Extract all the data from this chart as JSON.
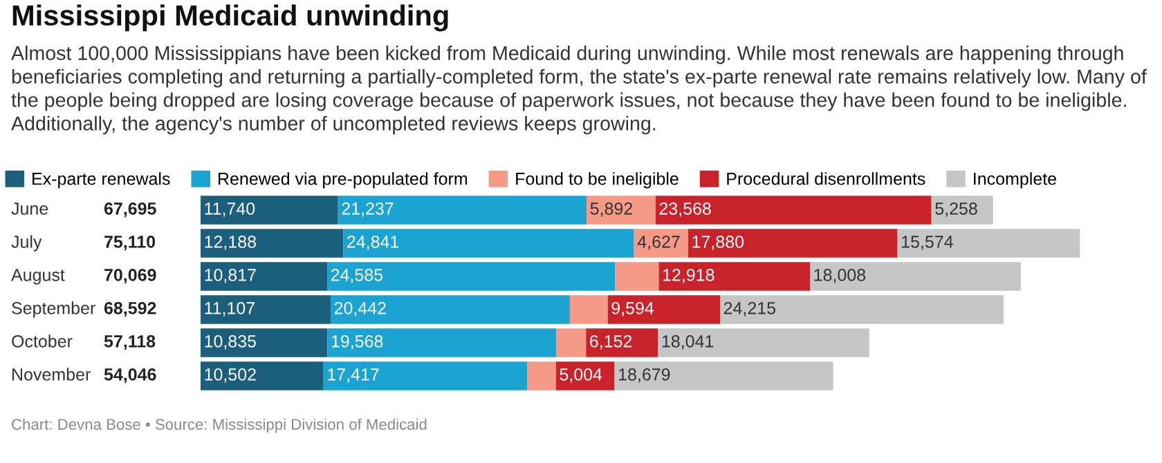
{
  "chart_data": {
    "type": "bar",
    "orientation": "horizontal",
    "stacked": true,
    "title": "Mississippi Medicaid unwinding",
    "subtitle": "Almost 100,000 Mississippians have been kicked from Medicaid during unwinding. While most renewals are happening through beneficiaries completing and returning a partially-completed form, the state's ex-parte renewal rate remains relatively low. Many of the people being dropped are losing coverage because of paperwork issues, not because they have been found to be ineligible. Additionally, the agency's number of uncompleted reviews keeps growing.",
    "categories": [
      "June",
      "July",
      "August",
      "September",
      "October",
      "November"
    ],
    "series": [
      {
        "name": "Ex-parte renewals",
        "color": "#1b5f7c",
        "values": [
          11740,
          12188,
          10817,
          11107,
          10835,
          10502
        ],
        "value_labels": [
          "11,740",
          "12,188",
          "10,817",
          "11,107",
          "10,835",
          "10,502"
        ]
      },
      {
        "name": "Renewed via pre-populated form",
        "color": "#1ba4d1",
        "values": [
          21237,
          24841,
          24585,
          20442,
          19568,
          17417
        ],
        "value_labels": [
          "21,237",
          "24,841",
          "24,585",
          "20,442",
          "19,568",
          "17,417"
        ]
      },
      {
        "name": "Found to be ineligible",
        "color": "#f49a87",
        "values": [
          5892,
          4627,
          3741,
          3234,
          2522,
          2444
        ],
        "value_labels": [
          "5,892",
          "4,627",
          null,
          null,
          null,
          null
        ]
      },
      {
        "name": "Procedural disenrollments",
        "color": "#c8232b",
        "values": [
          23568,
          17880,
          12918,
          9594,
          6152,
          5004
        ],
        "value_labels": [
          "23,568",
          "17,880",
          "12,918",
          "9,594",
          "6,152",
          "5,004"
        ]
      },
      {
        "name": "Incomplete",
        "color": "#c6c6c6",
        "values": [
          5258,
          15574,
          18008,
          24215,
          18041,
          18679
        ],
        "value_labels": [
          "5,258",
          "15,574",
          "18,008",
          "24,215",
          "18,041",
          "18,679"
        ]
      }
    ],
    "totals": [
      "67,695",
      "75,110",
      "70,069",
      "68,592",
      "57,118",
      "54,046"
    ],
    "legend": "top left",
    "annotations": [
      "Chart: Devna Bose • Source: Mississippi Division of Medicaid"
    ]
  }
}
